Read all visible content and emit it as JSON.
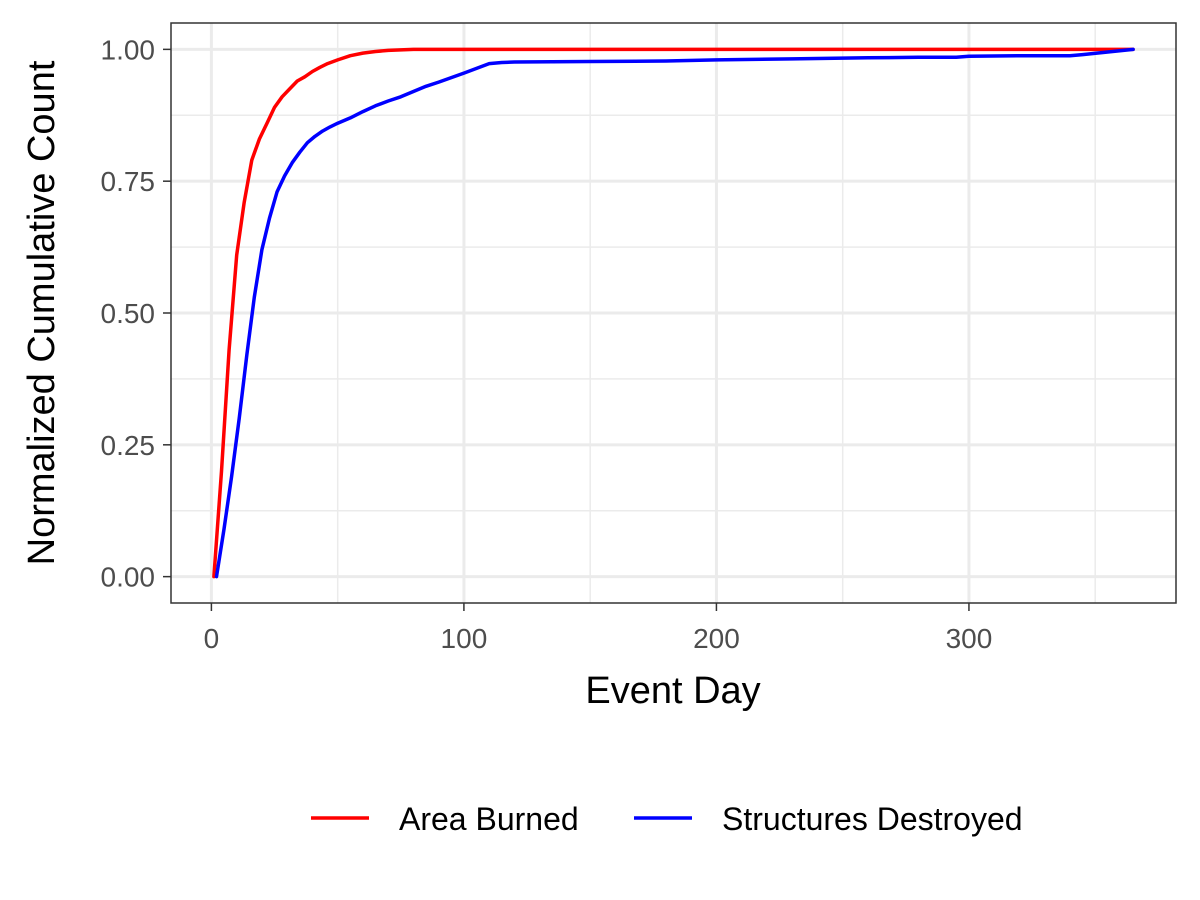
{
  "chart_data": {
    "type": "line",
    "xlabel": "Event Day",
    "ylabel": "Normalized Cumulative Count",
    "xlim": [
      -16,
      382
    ],
    "ylim": [
      -0.05,
      1.05
    ],
    "x_ticks": [
      0,
      100,
      200,
      300
    ],
    "x_tick_labels": [
      "0",
      "100",
      "200",
      "300"
    ],
    "x_minor_ticks": [
      50,
      150,
      250,
      350
    ],
    "y_ticks": [
      0,
      0.25,
      0.5,
      0.75,
      1.0
    ],
    "y_tick_labels": [
      "0.00",
      "0.25",
      "0.50",
      "0.75",
      "1.00"
    ],
    "y_minor_ticks": [
      0.125,
      0.375,
      0.625,
      0.875
    ],
    "grid": true,
    "legend_position": "bottom",
    "series": [
      {
        "name": "Area Burned",
        "color": "#ff0000",
        "x": [
          1,
          4,
          7,
          10,
          13,
          16,
          19,
          22,
          25,
          28,
          31,
          34,
          37,
          40,
          43,
          46,
          50,
          55,
          60,
          65,
          70,
          75,
          80,
          90,
          100,
          120,
          150,
          200,
          250,
          300,
          350,
          365
        ],
        "y": [
          0.0,
          0.2,
          0.43,
          0.61,
          0.71,
          0.79,
          0.83,
          0.86,
          0.89,
          0.91,
          0.925,
          0.94,
          0.948,
          0.958,
          0.966,
          0.973,
          0.98,
          0.988,
          0.993,
          0.996,
          0.998,
          0.999,
          1.0,
          1.0,
          1.0,
          1.0,
          1.0,
          1.0,
          1.0,
          1.0,
          1.0,
          1.0
        ]
      },
      {
        "name": "Structures Destroyed",
        "color": "#0000ff",
        "x": [
          2,
          5,
          8,
          11,
          14,
          17,
          20,
          23,
          26,
          29,
          32,
          35,
          38,
          41,
          44,
          47,
          50,
          55,
          60,
          65,
          70,
          75,
          80,
          85,
          90,
          100,
          110,
          115,
          120,
          150,
          180,
          200,
          230,
          260,
          280,
          295,
          300,
          320,
          340,
          345,
          355,
          365
        ],
        "y": [
          0.0,
          0.09,
          0.19,
          0.3,
          0.42,
          0.53,
          0.62,
          0.68,
          0.73,
          0.76,
          0.785,
          0.805,
          0.823,
          0.835,
          0.845,
          0.853,
          0.86,
          0.87,
          0.882,
          0.893,
          0.902,
          0.91,
          0.92,
          0.93,
          0.938,
          0.955,
          0.973,
          0.975,
          0.976,
          0.977,
          0.978,
          0.98,
          0.982,
          0.984,
          0.985,
          0.985,
          0.987,
          0.988,
          0.988,
          0.99,
          0.995,
          1.0
        ]
      }
    ]
  }
}
